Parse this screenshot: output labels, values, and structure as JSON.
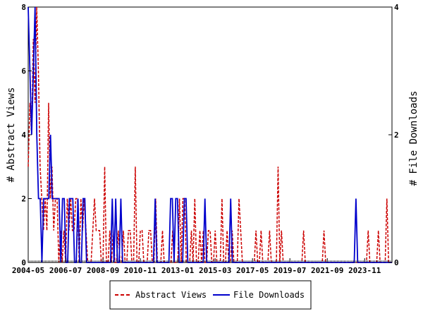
{
  "chart_data": {
    "type": "line",
    "ylabel_left": "# Abstract Views",
    "ylabel_right": "# File Downloads",
    "ylim_left": [
      0,
      8
    ],
    "ylim_right": [
      0,
      4
    ],
    "yticks_left": [
      "0",
      "2",
      "4",
      "6",
      "8"
    ],
    "yticks_right": [
      "0",
      "2",
      "4"
    ],
    "xticks": [
      "2004-05",
      "2006-07",
      "2008-09",
      "2010-11",
      "2013-01",
      "2015-03",
      "2017-05",
      "2019-07",
      "2021-09",
      "2023-11"
    ],
    "x_start": "2004-05",
    "x_end": "2025-06",
    "colors": {
      "abstract_views": "#cc0000",
      "file_downloads": "#0000cc"
    },
    "series": [
      {
        "name": "Abstract Views",
        "axis": "left",
        "style": "dashed",
        "values": [
          3,
          5,
          4,
          7,
          5,
          8,
          6,
          3,
          2,
          1,
          2,
          1,
          5,
          2,
          3,
          1,
          2,
          2,
          0,
          1,
          0,
          1,
          0,
          2,
          1,
          2,
          1,
          1,
          2,
          2,
          0,
          2,
          1,
          2,
          1,
          0,
          0,
          0,
          1,
          2,
          1,
          1,
          1,
          0,
          0,
          3,
          0,
          0,
          1,
          0,
          1,
          0,
          0,
          1,
          0,
          0,
          1,
          0,
          0,
          1,
          1,
          0,
          0,
          3,
          0,
          0,
          1,
          1,
          0,
          0,
          0,
          1,
          1,
          0,
          0,
          2,
          0,
          0,
          0,
          1,
          0,
          0,
          0,
          0,
          0,
          1,
          0,
          0,
          0,
          2,
          0,
          2,
          2,
          0,
          0,
          0,
          1,
          0,
          2,
          0,
          0,
          1,
          0,
          1,
          0,
          0,
          1,
          1,
          0,
          0,
          1,
          0,
          0,
          0,
          2,
          0,
          0,
          1,
          0,
          0,
          1,
          0,
          0,
          0,
          2,
          1,
          0,
          0,
          0,
          0,
          0,
          0,
          0,
          0,
          1,
          0,
          0,
          1,
          0,
          0,
          0,
          0,
          1,
          0,
          0,
          0,
          0,
          3,
          0,
          1,
          0,
          0,
          0,
          0,
          0,
          0,
          0,
          0,
          0,
          0,
          0,
          0,
          1,
          0,
          0,
          0,
          0,
          0,
          0,
          0,
          0,
          0,
          0,
          0,
          1,
          0,
          0,
          0,
          0,
          0,
          0,
          0,
          0,
          0,
          0,
          0,
          0,
          0,
          0,
          0,
          0,
          0,
          0,
          0,
          0,
          0,
          0,
          0,
          0,
          0,
          1,
          0,
          0,
          0,
          0,
          0,
          1,
          0,
          0,
          0,
          0,
          2,
          0,
          0,
          0
        ]
      },
      {
        "name": "File Downloads",
        "axis": "right",
        "style": "solid",
        "values": [
          4,
          3,
          2,
          3,
          4,
          2,
          1,
          1,
          0,
          1,
          1,
          1,
          1,
          2,
          1,
          1,
          1,
          1,
          1,
          0,
          1,
          1,
          0,
          0,
          1,
          1,
          1,
          0,
          0,
          1,
          0,
          0,
          1,
          1,
          0,
          0,
          0,
          0,
          0,
          0,
          0,
          0,
          0,
          0,
          0,
          0,
          0,
          0,
          0,
          1,
          0,
          1,
          0,
          0,
          1,
          0,
          0,
          0,
          0,
          0,
          0,
          0,
          0,
          0,
          0,
          0,
          0,
          0,
          0,
          0,
          0,
          0,
          0,
          0,
          1,
          0,
          0,
          0,
          0,
          0,
          0,
          0,
          0,
          1,
          1,
          0,
          1,
          1,
          0,
          0,
          0,
          1,
          1,
          0,
          0,
          0,
          0,
          0,
          0,
          0,
          0,
          0,
          0,
          1,
          0,
          0,
          0,
          0,
          0,
          0,
          0,
          0,
          0,
          0,
          0,
          0,
          0,
          0,
          1,
          0,
          0,
          0,
          0,
          0,
          0,
          0,
          0,
          0,
          0,
          0,
          0,
          0,
          0,
          0,
          0,
          0,
          0,
          0,
          0,
          0,
          0,
          0,
          0,
          0,
          0,
          0,
          0,
          0,
          0,
          0,
          0,
          0,
          0,
          0,
          0,
          0,
          0,
          0,
          0,
          0,
          0,
          0,
          0,
          0,
          0,
          0,
          0,
          0,
          0,
          0,
          0,
          0,
          0,
          0,
          0,
          0,
          0,
          0,
          0,
          0,
          0,
          0,
          0,
          0,
          0,
          0,
          0,
          0,
          0,
          0,
          0,
          1,
          0,
          0,
          0,
          0,
          0,
          0,
          0,
          0,
          0,
          0,
          0,
          0,
          0,
          0,
          0,
          0,
          0,
          0,
          0,
          0,
          0
        ]
      }
    ],
    "legend": {
      "placement": "bottom-center",
      "entries": [
        "Abstract Views",
        "File Downloads"
      ]
    },
    "grid": false
  }
}
